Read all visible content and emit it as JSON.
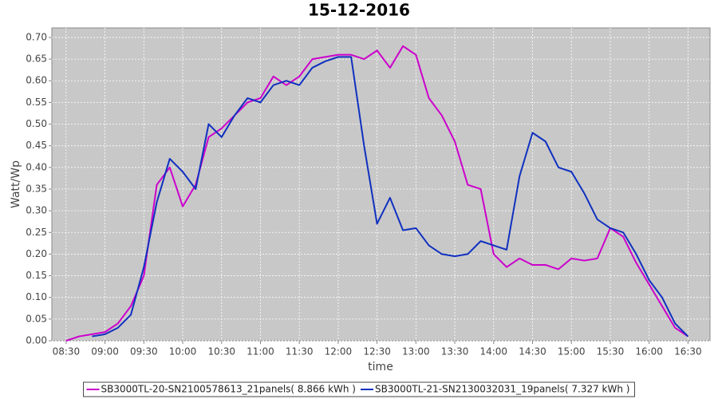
{
  "chart_data": {
    "type": "line",
    "title": "15-12-2016",
    "x_label": "time",
    "y_label": "Watt/Wp",
    "x": [
      "08:30",
      "08:40",
      "08:50",
      "09:00",
      "09:10",
      "09:20",
      "09:30",
      "09:40",
      "09:50",
      "10:00",
      "10:10",
      "10:20",
      "10:30",
      "10:40",
      "10:50",
      "11:00",
      "11:10",
      "11:20",
      "11:30",
      "11:40",
      "11:50",
      "12:00",
      "12:10",
      "12:20",
      "12:30",
      "12:40",
      "12:50",
      "13:00",
      "13:10",
      "13:20",
      "13:30",
      "13:40",
      "13:50",
      "14:00",
      "14:10",
      "14:20",
      "14:30",
      "14:40",
      "14:50",
      "15:00",
      "15:10",
      "15:20",
      "15:30",
      "15:40",
      "15:50",
      "16:00",
      "16:10",
      "16:20",
      "16:30"
    ],
    "series": [
      {
        "name": "SB3000TL-20-SN2100578613_21panels( 8.866 kWh )",
        "color": "#cc00cc",
        "values": [
          0.0,
          0.01,
          0.015,
          0.02,
          0.04,
          0.08,
          0.15,
          0.36,
          0.4,
          0.31,
          0.36,
          0.47,
          0.49,
          0.52,
          0.55,
          0.56,
          0.61,
          0.59,
          0.61,
          0.65,
          0.655,
          0.66,
          0.66,
          0.65,
          0.67,
          0.63,
          0.68,
          0.66,
          0.56,
          0.52,
          0.46,
          0.36,
          0.35,
          0.2,
          0.17,
          0.19,
          0.175,
          0.175,
          0.165,
          0.19,
          0.185,
          0.19,
          0.26,
          0.24,
          0.18,
          0.13,
          0.08,
          0.03,
          0.01
        ]
      },
      {
        "name": "SB3000TL-21-SN2130032031_19panels( 7.327 kWh )",
        "color": "#1030c0",
        "values": [
          null,
          null,
          0.01,
          0.015,
          0.03,
          0.06,
          0.17,
          0.32,
          0.42,
          0.39,
          0.35,
          0.5,
          0.47,
          0.52,
          0.56,
          0.55,
          0.59,
          0.6,
          0.59,
          0.63,
          0.645,
          0.655,
          0.655,
          0.45,
          0.27,
          0.33,
          0.255,
          0.26,
          0.22,
          0.2,
          0.195,
          0.2,
          0.23,
          0.22,
          0.21,
          0.38,
          0.48,
          0.46,
          0.4,
          0.39,
          0.34,
          0.28,
          0.26,
          0.25,
          0.2,
          0.14,
          0.1,
          0.04,
          0.01
        ]
      }
    ],
    "xlim": [
      "08:19",
      "16:47"
    ],
    "xticks": [
      "08:30",
      "09:00",
      "09:30",
      "10:00",
      "10:30",
      "11:00",
      "11:30",
      "12:00",
      "12:30",
      "13:00",
      "13:30",
      "14:00",
      "14:30",
      "15:00",
      "15:30",
      "16:00",
      "16:30"
    ],
    "ylim": [
      0,
      0.722
    ],
    "yticks": [
      {
        "value": 0,
        "label": "0.00"
      },
      {
        "value": 0.05,
        "label": "0.05"
      },
      {
        "value": 0.1,
        "label": "0.10"
      },
      {
        "value": 0.15,
        "label": "0.15"
      },
      {
        "value": 0.2,
        "label": "0.20"
      },
      {
        "value": 0.25,
        "label": "0.25"
      },
      {
        "value": 0.3,
        "label": "0.30"
      },
      {
        "value": 0.35,
        "label": "0.35"
      },
      {
        "value": 0.4,
        "label": "0.40"
      },
      {
        "value": 0.45,
        "label": "0.45"
      },
      {
        "value": 0.5,
        "label": "0.50"
      },
      {
        "value": 0.55,
        "label": "0.55"
      },
      {
        "value": 0.6,
        "label": "0.60"
      },
      {
        "value": 0.65,
        "label": "0.65"
      },
      {
        "value": 0.7,
        "label": "0.70"
      }
    ],
    "grid": true,
    "background": "#c8c8c8"
  }
}
